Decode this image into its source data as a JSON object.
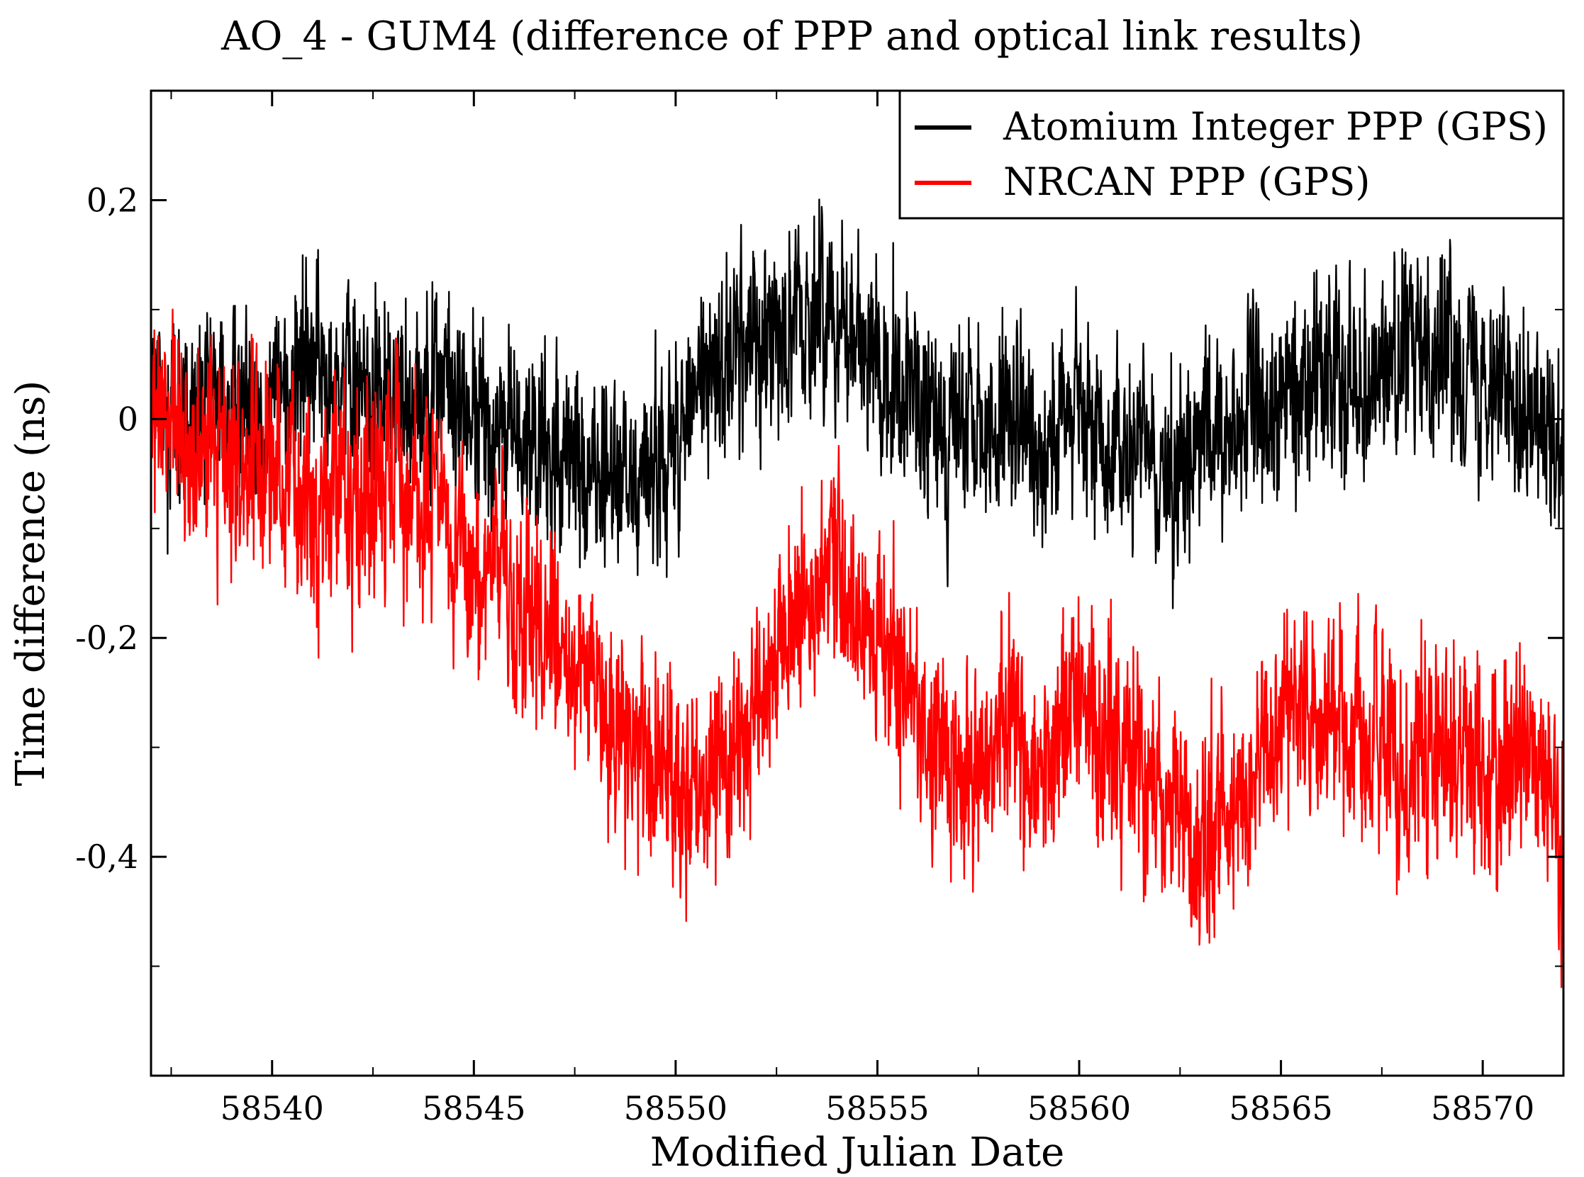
{
  "chart_data": {
    "type": "line",
    "title": "AO_4 - GUM4 (difference of PPP and optical link results)",
    "xlabel": "Modified Julian Date",
    "ylabel": "Time difference (ns)",
    "xlim": [
      58537,
      58572
    ],
    "ylim": [
      -0.6,
      0.3
    ],
    "x_ticks": [
      58540,
      58545,
      58550,
      58555,
      58560,
      58565,
      58570
    ],
    "x_tick_labels": [
      "58540",
      "58545",
      "58550",
      "58555",
      "58560",
      "58565",
      "58570"
    ],
    "y_ticks": [
      0.2,
      0,
      -0.2,
      -0.4
    ],
    "y_tick_labels": [
      "0,2",
      "0",
      "-0,2",
      "-0,4"
    ],
    "legend_position": "top-right",
    "series": [
      {
        "name": "Atomium Integer PPP (GPS)",
        "color": "#000000",
        "trend_x": [
          58537,
          58538,
          58539,
          58540,
          58541,
          58542,
          58543,
          58544,
          58545,
          58546,
          58547,
          58548,
          58549,
          58550,
          58551,
          58552,
          58553,
          58554,
          58555,
          58556,
          58557,
          58558,
          58559,
          58560,
          58561,
          58562,
          58563,
          58564,
          58565,
          58566,
          58567,
          58568,
          58569,
          58570,
          58571,
          58572
        ],
        "trend_y": [
          0.02,
          0.0,
          0.01,
          0.02,
          0.05,
          0.03,
          0.02,
          0.04,
          0.0,
          -0.02,
          -0.03,
          -0.05,
          -0.06,
          -0.02,
          0.05,
          0.08,
          0.09,
          0.1,
          0.06,
          0.0,
          -0.02,
          0.0,
          -0.02,
          0.0,
          -0.02,
          -0.05,
          -0.03,
          0.0,
          0.01,
          0.05,
          0.04,
          0.06,
          0.07,
          0.05,
          0.02,
          -0.06
        ],
        "noise": 0.05
      },
      {
        "name": "NRCAN PPP (GPS)",
        "color": "#ff0000",
        "trend_x": [
          58537,
          58538,
          58539,
          58540,
          58541,
          58542,
          58543,
          58544,
          58545,
          58546,
          58547,
          58548,
          58549,
          58550,
          58551,
          58552,
          58553,
          58554,
          58555,
          58556,
          58557,
          58558,
          58559,
          58560,
          58561,
          58562,
          58563,
          58564,
          58565,
          58566,
          58567,
          58568,
          58569,
          58570,
          58571,
          58572
        ],
        "trend_y": [
          0.0,
          -0.03,
          -0.04,
          -0.05,
          -0.08,
          -0.07,
          -0.05,
          -0.08,
          -0.14,
          -0.17,
          -0.2,
          -0.25,
          -0.31,
          -0.34,
          -0.32,
          -0.26,
          -0.18,
          -0.14,
          -0.2,
          -0.27,
          -0.32,
          -0.3,
          -0.31,
          -0.27,
          -0.3,
          -0.35,
          -0.38,
          -0.35,
          -0.3,
          -0.27,
          -0.29,
          -0.32,
          -0.31,
          -0.33,
          -0.3,
          -0.38
        ],
        "noise": 0.055
      }
    ]
  }
}
